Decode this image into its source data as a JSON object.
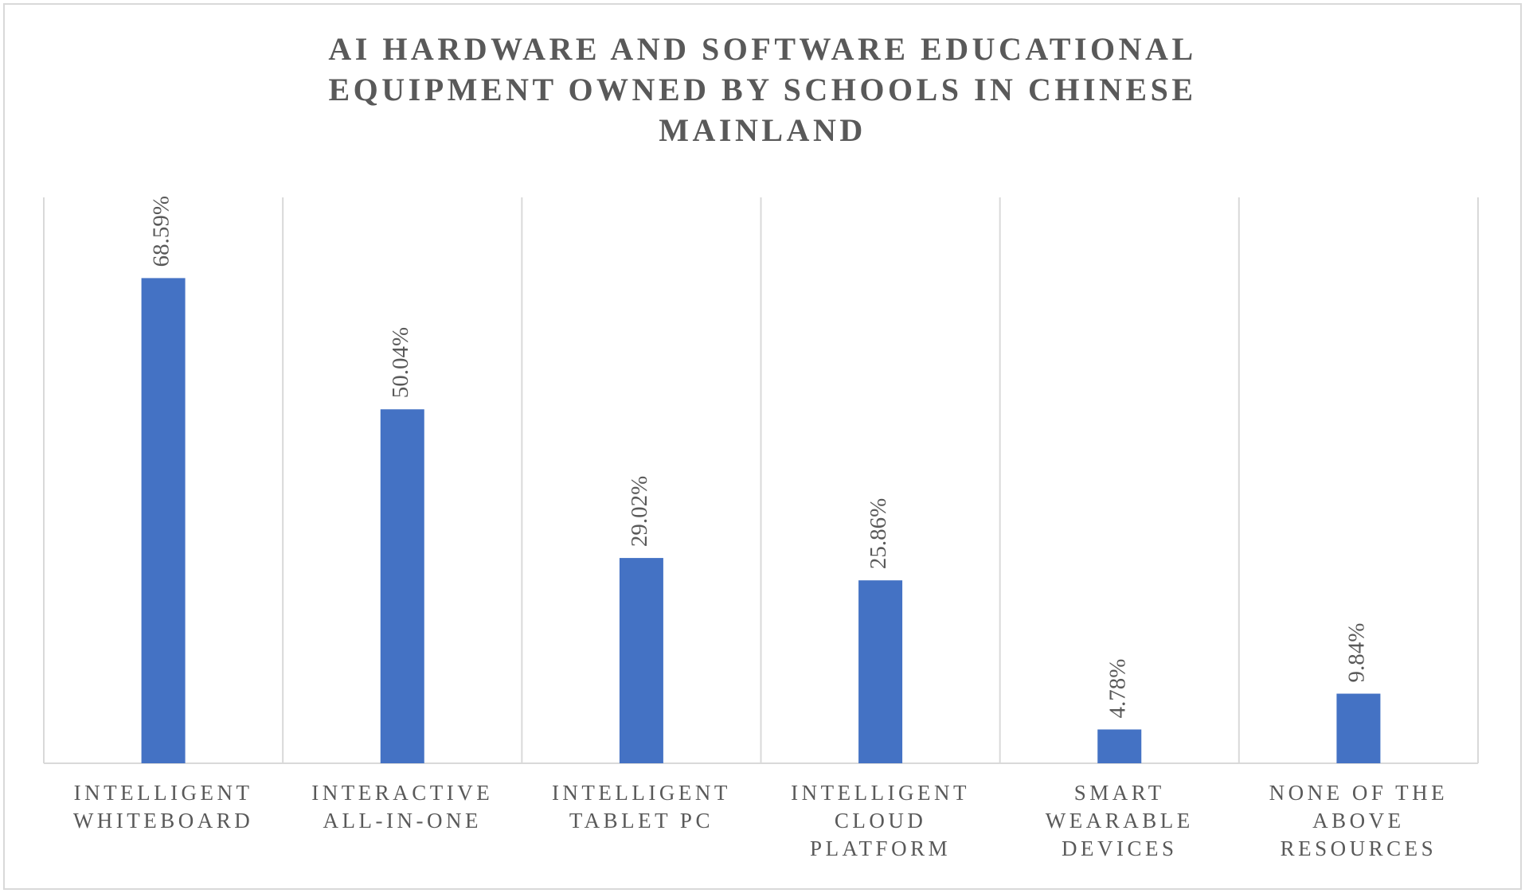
{
  "chart_data": {
    "type": "bar",
    "title": "AI HARDWARE AND SOFTWARE EDUCATIONAL EQUIPMENT OWNED BY SCHOOLS IN CHINESE MAINLAND",
    "categories": [
      "INTELLIGENT WHITEBOARD",
      "INTERACTIVE ALL-IN-ONE",
      "INTELLIGENT TABLET PC",
      "INTELLIGENT CLOUD PLATFORM",
      "SMART WEARABLE DEVICES",
      "NONE OF THE ABOVE RESOURCES"
    ],
    "values": [
      68.59,
      50.04,
      29.02,
      25.86,
      4.78,
      9.84
    ],
    "value_labels": [
      "68.59%",
      "50.04%",
      "29.02%",
      "25.86%",
      "4.78%",
      "9.84%"
    ],
    "color": "#4472c4",
    "ylim": [
      0,
      80
    ]
  }
}
